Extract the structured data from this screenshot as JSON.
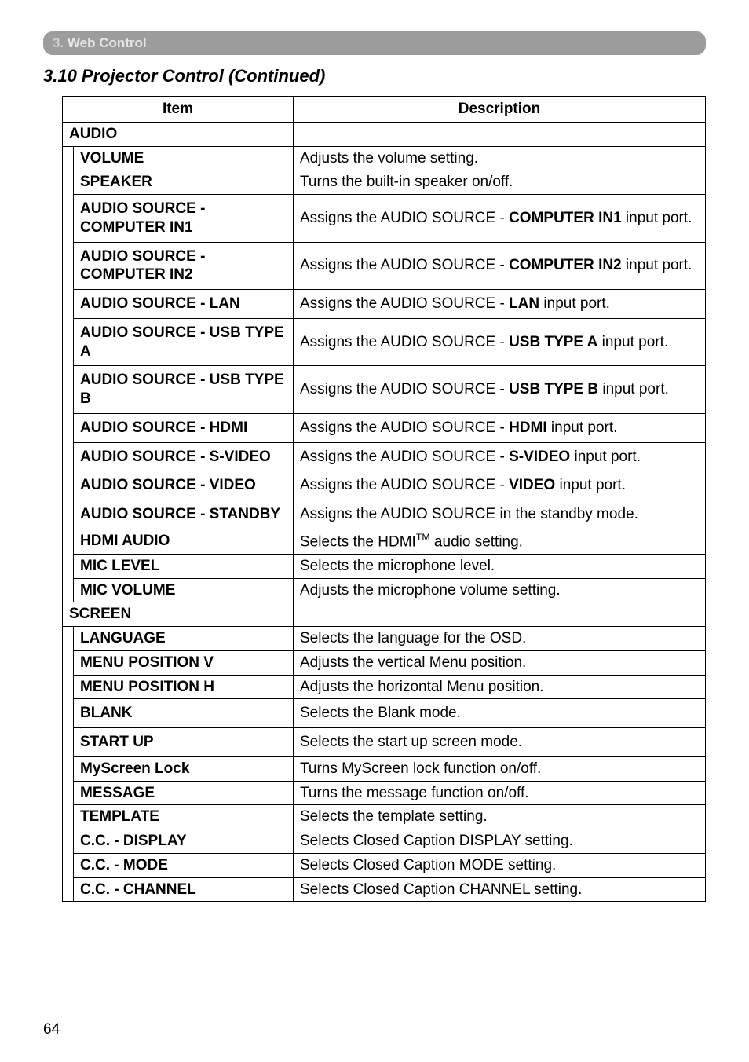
{
  "header": {
    "chapter_num": "3.",
    "chapter_title": "Web Control"
  },
  "section_title": "3.10 Projector Control (Continued)",
  "table": {
    "col_item": "Item",
    "col_desc": "Description",
    "groups": [
      {
        "label": "AUDIO",
        "rows": [
          {
            "item": "VOLUME",
            "desc": "Adjusts the volume setting."
          },
          {
            "item": "SPEAKER",
            "desc": "Turns the built-in speaker on/off."
          },
          {
            "item": "AUDIO SOURCE - COMPUTER IN1",
            "desc_pre": "Assigns the AUDIO SOURCE - ",
            "desc_bold": "COMPUTER IN1",
            "desc_post": " input port.",
            "tall": true
          },
          {
            "item": "AUDIO SOURCE - COMPUTER IN2",
            "desc_pre": "Assigns the AUDIO SOURCE - ",
            "desc_bold": "COMPUTER IN2",
            "desc_post": " input port.",
            "tall": true
          },
          {
            "item": "AUDIO SOURCE - LAN",
            "desc_pre": "Assigns the AUDIO SOURCE - ",
            "desc_bold": "LAN",
            "desc_post": " input port.",
            "tall": true
          },
          {
            "item": "AUDIO SOURCE - USB TYPE A",
            "desc_pre": "Assigns the AUDIO SOURCE - ",
            "desc_bold": "USB TYPE A",
            "desc_post": " input port.",
            "tall": true
          },
          {
            "item": "AUDIO SOURCE - USB TYPE B",
            "desc_pre": "Assigns the AUDIO SOURCE - ",
            "desc_bold": "USB TYPE B",
            "desc_post": " input port.",
            "tall": true
          },
          {
            "item": "AUDIO SOURCE - HDMI",
            "desc_pre": "Assigns the AUDIO SOURCE - ",
            "desc_bold": "HDMI",
            "desc_post": " input port.",
            "tall": true
          },
          {
            "item": "AUDIO SOURCE - S-VIDEO",
            "desc_pre": "Assigns the AUDIO SOURCE - ",
            "desc_bold": "S-VIDEO",
            "desc_post": " input port.",
            "tall": true
          },
          {
            "item": "AUDIO SOURCE - VIDEO",
            "desc_pre": "Assigns the AUDIO SOURCE - ",
            "desc_bold": "VIDEO",
            "desc_post": " input port.",
            "tall": true
          },
          {
            "item": "AUDIO SOURCE - STANDBY",
            "desc": "Assigns the AUDIO SOURCE in the standby mode.",
            "tall": true
          },
          {
            "item": "HDMI AUDIO",
            "desc_html": "Selects the HDMI<sup>TM</sup> audio setting."
          },
          {
            "item": "MIC LEVEL",
            "desc": "Selects the microphone level."
          },
          {
            "item": "MIC VOLUME",
            "desc": "Adjusts the microphone volume setting."
          }
        ]
      },
      {
        "label": "SCREEN",
        "rows": [
          {
            "item": "LANGUAGE",
            "desc": "Selects the language for the OSD."
          },
          {
            "item": "MENU POSITION V",
            "desc": "Adjusts the vertical Menu position."
          },
          {
            "item": "MENU POSITION H",
            "desc": "Adjusts the horizontal Menu position."
          },
          {
            "item": "BLANK",
            "desc": "Selects the Blank mode.",
            "tall": true
          },
          {
            "item": "START UP",
            "desc": "Selects the start up screen mode.",
            "tall": true
          },
          {
            "item": "MyScreen Lock",
            "desc": "Turns MyScreen lock function on/off."
          },
          {
            "item": "MESSAGE",
            "desc": "Turns the message function on/off."
          },
          {
            "item": "TEMPLATE",
            "desc": "Selects the template setting."
          },
          {
            "item": "C.C. - DISPLAY",
            "desc": "Selects Closed Caption DISPLAY setting."
          },
          {
            "item": "C.C. - MODE",
            "desc": "Selects Closed Caption MODE setting."
          },
          {
            "item": "C.C. - CHANNEL",
            "desc": "Selects Closed Caption CHANNEL setting."
          }
        ]
      }
    ]
  },
  "page_num": "64",
  "colors": {
    "tab_bg": "#9c9c9c",
    "tab_text": "#e6e6e6",
    "border": "#000000",
    "text": "#000000",
    "bg": "#ffffff"
  }
}
